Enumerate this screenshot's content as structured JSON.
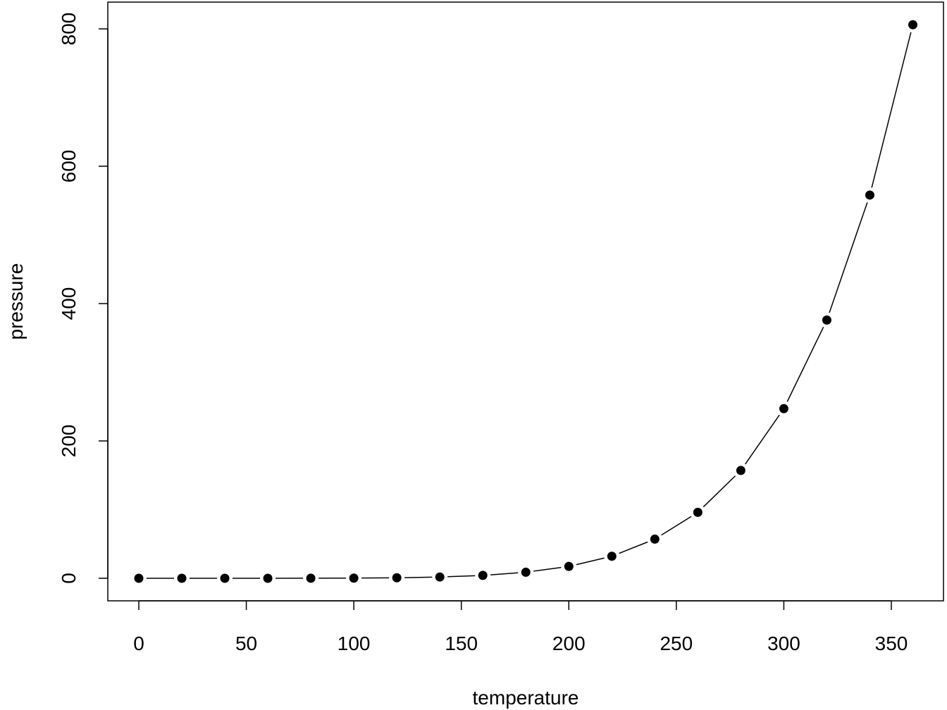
{
  "chart_data": {
    "type": "line",
    "plot_type": "points-and-lines",
    "title": "",
    "xlabel": "temperature",
    "ylabel": "pressure",
    "xlim": [
      0,
      360
    ],
    "ylim": [
      0,
      806
    ],
    "x_ticks": [
      0,
      50,
      100,
      150,
      200,
      250,
      300,
      350
    ],
    "y_ticks": [
      0,
      200,
      400,
      600,
      800
    ],
    "grid": false,
    "legend": "none",
    "color": "#000000",
    "x": [
      0,
      20,
      40,
      60,
      80,
      100,
      120,
      140,
      160,
      180,
      200,
      220,
      240,
      260,
      280,
      300,
      320,
      340,
      360
    ],
    "y": [
      0.0002,
      0.0012,
      0.006,
      0.03,
      0.09,
      0.27,
      0.75,
      1.85,
      4.2,
      8.8,
      17.3,
      32.1,
      57,
      96,
      157,
      247,
      376,
      558,
      806
    ]
  }
}
